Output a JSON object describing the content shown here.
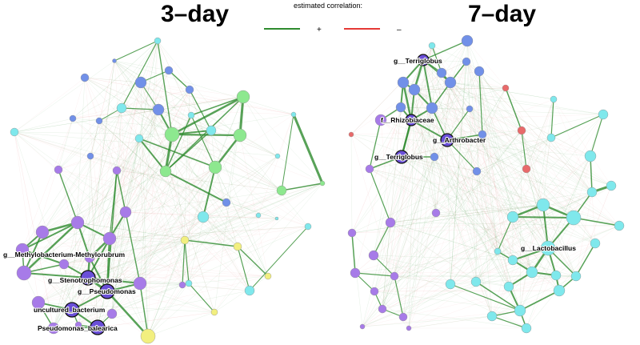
{
  "panels": [
    {
      "title": "3–day"
    },
    {
      "title": "7–day"
    }
  ],
  "legend": {
    "title": "estimated correlation:",
    "positive": {
      "sign": "+",
      "color": "#2e8b2e"
    },
    "negative": {
      "sign": "–",
      "color": "#e53935"
    }
  },
  "colors": {
    "blue": "#7190e8",
    "cyan": "#7fe8ec",
    "green": "#8de88f",
    "purple": "#a77be8",
    "yellow": "#f2ef7f",
    "red": "#e86a6a",
    "darkpurple": "#6a4fd8",
    "edge_pos": "#2e8b2e",
    "edge_neg": "#e57373"
  },
  "labels_3day": [
    "g__Methylobacterium-Methylorubrum",
    "g__Stenotrophomonas",
    "g__Pseudomonas",
    "uncultured_bacterium",
    "Pseudomonas_balearica"
  ],
  "labels_7day": [
    "g__Terriglobus",
    "f__Rhizobiaceae",
    "g__Arthrobacter",
    "g__Terriglobus",
    "g__Lactobacillus"
  ]
}
